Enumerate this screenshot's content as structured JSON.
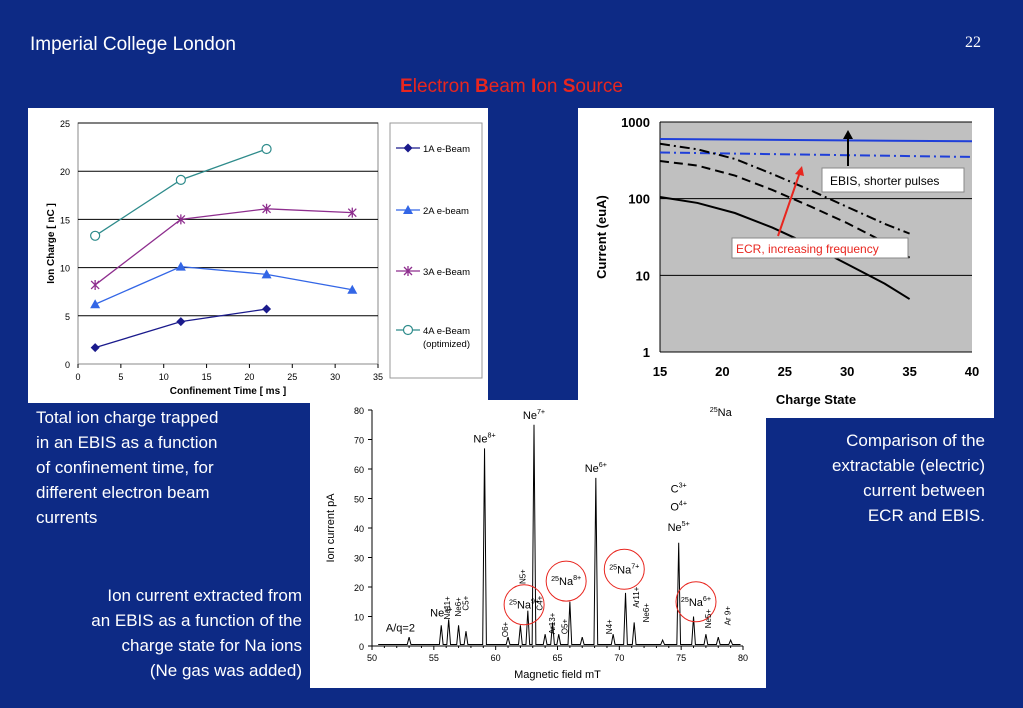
{
  "header": {
    "org": "Imperial College London",
    "slide_number": "22"
  },
  "title": {
    "parts": [
      {
        "cap": "E",
        "rest": "lectron "
      },
      {
        "cap": "B",
        "rest": "eam "
      },
      {
        "cap": "I",
        "rest": "on "
      },
      {
        "cap": "S",
        "rest": "ource"
      }
    ]
  },
  "captions": {
    "left_top": [
      "Total ion charge trapped",
      "in an EBIS as a function",
      "of confinement time, for",
      "different electron beam",
      "currents"
    ],
    "right": [
      "Comparison of the",
      "extractable (electric)",
      "current between",
      "ECR and EBIS."
    ],
    "left_bottom": [
      "Ion current extracted from",
      "an EBIS as a function of the",
      "charge state for Na ions",
      "(Ne gas was added)"
    ]
  },
  "colors": {
    "background": "#0d2a85",
    "title": "#e8261f"
  },
  "chart_data": [
    {
      "type": "line",
      "xlabel": "Confinement Time [ ms ]",
      "ylabel": "Ion Charge [ nC ]",
      "xlim": [
        0,
        35
      ],
      "ylim": [
        0,
        25
      ],
      "xticks": [
        0,
        5,
        10,
        15,
        20,
        25,
        30,
        35
      ],
      "yticks": [
        0,
        5,
        10,
        15,
        20,
        25
      ],
      "grid": "horizontal",
      "legend": "right",
      "series": [
        {
          "name": "1A e-Beam",
          "marker": "diamond",
          "color": "#1a1a8c",
          "x": [
            2,
            12,
            22
          ],
          "y": [
            1.7,
            4.4,
            5.7
          ]
        },
        {
          "name": "2A e-beam",
          "marker": "triangle",
          "color": "#3366e6",
          "x": [
            2,
            12,
            22,
            32
          ],
          "y": [
            6.2,
            10.1,
            9.3,
            7.7
          ]
        },
        {
          "name": "3A e-Beam",
          "marker": "star",
          "color": "#8e2e8e",
          "x": [
            2,
            12,
            22,
            32
          ],
          "y": [
            8.2,
            15.0,
            16.1,
            15.7
          ]
        },
        {
          "name": "4A e-Beam",
          "name2": "(optimized)",
          "marker": "circle",
          "color": "#2e8b8b",
          "x": [
            2,
            12,
            22
          ],
          "y": [
            13.3,
            19.1,
            22.3
          ]
        }
      ]
    },
    {
      "type": "line",
      "xlabel": "Charge State",
      "ylabel": "Current (euA)",
      "xlim": [
        15,
        40
      ],
      "ylim": [
        1,
        1000
      ],
      "yscale": "log",
      "xticks": [
        15,
        20,
        25,
        30,
        35,
        40
      ],
      "yticks": [
        1,
        10,
        100,
        1000
      ],
      "annotations": [
        "EBIS, shorter pulses",
        "ECR, increasing frequency"
      ],
      "series": [
        {
          "style": "solid-blue",
          "color": "#1f3fd9",
          "x": [
            15,
            40
          ],
          "y": [
            600,
            560
          ]
        },
        {
          "style": "dashdot-blue",
          "color": "#1f3fd9",
          "x": [
            15,
            40
          ],
          "y": [
            400,
            350
          ]
        },
        {
          "style": "solid-black",
          "color": "#000",
          "x": [
            15,
            18,
            21,
            24,
            27,
            30,
            33,
            35
          ],
          "y": [
            105,
            88,
            65,
            42,
            25,
            14,
            7.8,
            4.9
          ]
        },
        {
          "style": "dashed-black",
          "color": "#000",
          "x": [
            15,
            18,
            21,
            24,
            27,
            30,
            33,
            35
          ],
          "y": [
            310,
            270,
            200,
            130,
            80,
            48,
            27,
            17
          ]
        },
        {
          "style": "dashdot-black",
          "color": "#000",
          "x": [
            15,
            18,
            21,
            24,
            27,
            30,
            33,
            35
          ],
          "y": [
            520,
            440,
            330,
            210,
            130,
            78,
            47,
            35
          ]
        }
      ]
    },
    {
      "type": "line",
      "xlabel": "Magnetic field mT",
      "ylabel": "Ion current pA",
      "xlim": [
        50,
        80
      ],
      "ylim": [
        0,
        80
      ],
      "xticks": [
        50,
        55,
        60,
        65,
        70,
        75,
        80
      ],
      "yticks": [
        0,
        10,
        20,
        30,
        40,
        50,
        60,
        70,
        80
      ],
      "peaks": [
        {
          "x": 53.0,
          "y": 3
        },
        {
          "x": 55.6,
          "y": 7
        },
        {
          "x": 56.2,
          "y": 9
        },
        {
          "x": 57.0,
          "y": 7
        },
        {
          "x": 57.6,
          "y": 5
        },
        {
          "x": 59.1,
          "y": 67
        },
        {
          "x": 61.0,
          "y": 3
        },
        {
          "x": 62.0,
          "y": 7
        },
        {
          "x": 62.6,
          "y": 12
        },
        {
          "x": 63.1,
          "y": 75
        },
        {
          "x": 64.0,
          "y": 4
        },
        {
          "x": 64.6,
          "y": 8
        },
        {
          "x": 65.1,
          "y": 4
        },
        {
          "x": 66.0,
          "y": 15
        },
        {
          "x": 67.0,
          "y": 3
        },
        {
          "x": 68.1,
          "y": 57
        },
        {
          "x": 69.5,
          "y": 4
        },
        {
          "x": 70.5,
          "y": 18
        },
        {
          "x": 71.2,
          "y": 8
        },
        {
          "x": 73.5,
          "y": 2
        },
        {
          "x": 74.8,
          "y": 35
        },
        {
          "x": 76.0,
          "y": 10
        },
        {
          "x": 77.0,
          "y": 4
        },
        {
          "x": 78.0,
          "y": 3
        },
        {
          "x": 79.0,
          "y": 2
        }
      ],
      "labels": [
        {
          "text": "Ne",
          "sup": "7+",
          "x": 63.1,
          "y": 77
        },
        {
          "text": "Ne",
          "sup": "8+",
          "x": 59.1,
          "y": 69
        },
        {
          "text": "Ne",
          "sup": "6+",
          "x": 68.1,
          "y": 59
        },
        {
          "text": "25Na",
          "x": 78.2,
          "y": 78
        },
        {
          "text": "C",
          "sup": "3+",
          "x": 74.8,
          "y": 52
        },
        {
          "text": "O",
          "sup": "4+",
          "x": 74.8,
          "y": 46
        },
        {
          "text": "Ne",
          "sup": "5+",
          "x": 74.8,
          "y": 39
        },
        {
          "text": "Ne",
          "sup": "9+",
          "x": 55.6,
          "y": 10
        },
        {
          "text": "A/q=2",
          "x": 52.3,
          "y": 5
        }
      ],
      "circled": [
        {
          "label": "25Na",
          "sup": "9+",
          "x": 62.3,
          "y": 14
        },
        {
          "label": "25Na",
          "sup": "8+",
          "x": 65.7,
          "y": 22
        },
        {
          "label": "25Na",
          "sup": "7+",
          "x": 70.4,
          "y": 26
        },
        {
          "label": "25Na",
          "sup": "6+",
          "x": 76.2,
          "y": 15
        }
      ],
      "vertical_labels": [
        "Na11+",
        "Ne6+",
        "C5+",
        "O6+",
        "N5+",
        "C4+",
        "Ar13+",
        "O5+",
        "N4+",
        "Ar11+",
        "Ne6+",
        "Ne5+",
        "Ar 9+"
      ]
    }
  ]
}
